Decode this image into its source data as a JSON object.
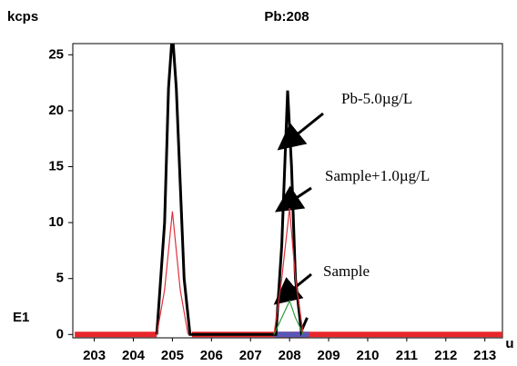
{
  "chart_data": {
    "type": "line",
    "title": "Pb:208",
    "ylabel": "kcps",
    "xlabel": "u",
    "exponent_label": "E1",
    "xlim": [
      202.45,
      213.45
    ],
    "ylim": [
      -0.3,
      26
    ],
    "xticks": [
      203,
      204,
      205,
      206,
      207,
      208,
      209,
      210,
      211,
      212,
      213
    ],
    "yticks": [
      0,
      5,
      10,
      15,
      20,
      25
    ],
    "highlight_regions": [
      {
        "xrange": [
          202.5,
          204.6
        ],
        "color": "#e8262c"
      },
      {
        "xrange": [
          205.5,
          213.5
        ],
        "color": "#e8262c"
      },
      {
        "xrange": [
          207.6,
          208.5
        ],
        "color": "#5a56b8"
      }
    ],
    "series": [
      {
        "name": "Pb-5.0µg/L",
        "color": "#000000",
        "x": [
          204.6,
          204.8,
          204.9,
          205.0,
          205.1,
          205.3,
          205.45,
          207.65,
          207.8,
          207.95,
          208.05,
          208.15,
          208.3,
          208.45
        ],
        "values": [
          0,
          10,
          22,
          27,
          22,
          5,
          0,
          0,
          8,
          21.8,
          15,
          5,
          0.3,
          1.5
        ]
      },
      {
        "name": "Sample+1.0µg/L",
        "color": "#e0303a",
        "x": [
          204.6,
          204.8,
          205.0,
          205.2,
          205.4,
          null,
          207.6,
          207.8,
          208.0,
          208.15,
          208.35
        ],
        "values": [
          0,
          4,
          11,
          4,
          0,
          null,
          0,
          5,
          11.3,
          5,
          0
        ]
      },
      {
        "name": "Sample",
        "color": "#2e9e3a",
        "x": [
          207.6,
          207.8,
          208.0,
          208.15,
          208.35
        ],
        "values": [
          0,
          1.5,
          3,
          1.5,
          0
        ]
      }
    ]
  }
}
